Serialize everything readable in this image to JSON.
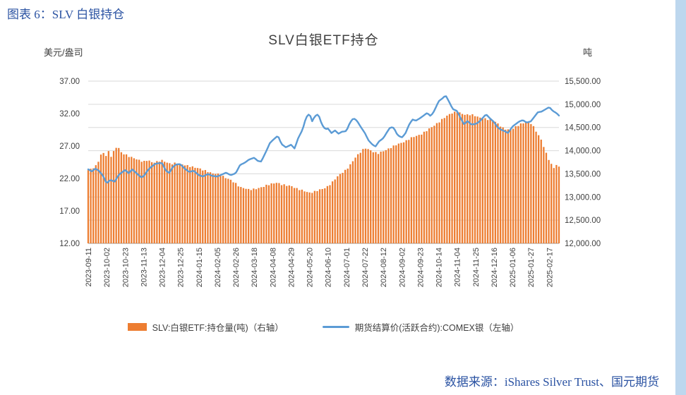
{
  "page": {
    "header": "图表 6：SLV 白银持仓",
    "source": "数据来源：iShares Silver Trust、国元期货"
  },
  "chart": {
    "title": "SLV白银ETF持仓",
    "left_axis": {
      "unit": "美元/盎司",
      "ticks": [
        "12.00",
        "17.00",
        "22.00",
        "27.00",
        "32.00",
        "37.00"
      ]
    },
    "right_axis": {
      "unit": "吨",
      "ticks": [
        "12,000.00",
        "12,500.00",
        "13,000.00",
        "13,500.00",
        "14,000.00",
        "14,500.00",
        "15,000.00",
        "15,500.00"
      ]
    },
    "x_labels": [
      "2023-09-11",
      "2023-10-02",
      "2023-10-23",
      "2023-11-13",
      "2023-12-04",
      "2023-12-25",
      "2024-01-15",
      "2024-02-05",
      "2024-02-26",
      "2024-03-18",
      "2024-04-08",
      "2024-04-29",
      "2024-05-20",
      "2024-06-10",
      "2024-07-01",
      "2024-07-22",
      "2024-08-12",
      "2024-09-02",
      "2024-09-23",
      "2024-10-14",
      "2024-11-04",
      "2024-11-25",
      "2024-12-16",
      "2025-01-06",
      "2025-01-27",
      "2025-02-17"
    ],
    "legend": [
      {
        "label": "SLV:白银ETF:持仓量(吨)（右轴）",
        "type": "bar",
        "color": "#ED7D31"
      },
      {
        "label": "期货结算价(活跃合约):COMEX银（左轴）",
        "type": "line",
        "color": "#5B9BD5"
      }
    ]
  },
  "chart_data": {
    "type": "bar+line",
    "title": "SLV白银ETF持仓",
    "x_domain_days": 536,
    "x_label_step_days": 21,
    "bar_count": 186,
    "line_samples": 268,
    "bar_jitter": 15,
    "grid": true,
    "legend_position": "bottom",
    "axes": {
      "left": {
        "label": "美元/盎司",
        "min": 12,
        "max": 37
      },
      "right": {
        "label": "吨",
        "min": 12000,
        "max": 15500
      }
    },
    "series": [
      {
        "name": "SLV:白银ETF:持仓量(吨)（右轴）",
        "type": "bar",
        "axis": "right",
        "color": "#ED7D31",
        "keypoints": [
          [
            0,
            13580
          ],
          [
            5,
            13620
          ],
          [
            10,
            13690
          ],
          [
            14,
            13900
          ],
          [
            18,
            13960
          ],
          [
            21,
            13870
          ],
          [
            24,
            14020
          ],
          [
            27,
            13820
          ],
          [
            30,
            14060
          ],
          [
            34,
            14080
          ],
          [
            38,
            13950
          ],
          [
            42,
            13920
          ],
          [
            47,
            13870
          ],
          [
            52,
            13840
          ],
          [
            57,
            13800
          ],
          [
            63,
            13760
          ],
          [
            68,
            13800
          ],
          [
            73,
            13740
          ],
          [
            78,
            13760
          ],
          [
            84,
            13790
          ],
          [
            89,
            13750
          ],
          [
            94,
            13710
          ],
          [
            99,
            13730
          ],
          [
            105,
            13710
          ],
          [
            110,
            13690
          ],
          [
            116,
            13660
          ],
          [
            121,
            13640
          ],
          [
            126,
            13620
          ],
          [
            131,
            13580
          ],
          [
            136,
            13550
          ],
          [
            141,
            13510
          ],
          [
            147,
            13500
          ],
          [
            152,
            13460
          ],
          [
            157,
            13410
          ],
          [
            162,
            13370
          ],
          [
            168,
            13290
          ],
          [
            173,
            13210
          ],
          [
            178,
            13190
          ],
          [
            183,
            13160
          ],
          [
            189,
            13170
          ],
          [
            194,
            13190
          ],
          [
            199,
            13220
          ],
          [
            204,
            13260
          ],
          [
            210,
            13290
          ],
          [
            215,
            13310
          ],
          [
            220,
            13270
          ],
          [
            226,
            13250
          ],
          [
            231,
            13240
          ],
          [
            236,
            13190
          ],
          [
            241,
            13160
          ],
          [
            246,
            13130
          ],
          [
            252,
            13090
          ],
          [
            257,
            13110
          ],
          [
            262,
            13150
          ],
          [
            268,
            13180
          ],
          [
            273,
            13230
          ],
          [
            278,
            13320
          ],
          [
            283,
            13430
          ],
          [
            288,
            13510
          ],
          [
            294,
            13590
          ],
          [
            299,
            13710
          ],
          [
            304,
            13850
          ],
          [
            309,
            13950
          ],
          [
            315,
            14060
          ],
          [
            320,
            14020
          ],
          [
            325,
            13970
          ],
          [
            330,
            13940
          ],
          [
            336,
            13990
          ],
          [
            341,
            14030
          ],
          [
            346,
            14080
          ],
          [
            351,
            14130
          ],
          [
            357,
            14170
          ],
          [
            362,
            14210
          ],
          [
            367,
            14270
          ],
          [
            372,
            14310
          ],
          [
            378,
            14340
          ],
          [
            383,
            14400
          ],
          [
            388,
            14470
          ],
          [
            393,
            14530
          ],
          [
            399,
            14610
          ],
          [
            404,
            14690
          ],
          [
            409,
            14760
          ],
          [
            414,
            14810
          ],
          [
            420,
            14840
          ],
          [
            425,
            14800
          ],
          [
            430,
            14770
          ],
          [
            436,
            14780
          ],
          [
            441,
            14750
          ],
          [
            446,
            14710
          ],
          [
            451,
            14690
          ],
          [
            456,
            14670
          ],
          [
            462,
            14650
          ],
          [
            467,
            14570
          ],
          [
            472,
            14490
          ],
          [
            477,
            14450
          ],
          [
            483,
            14470
          ],
          [
            488,
            14530
          ],
          [
            493,
            14580
          ],
          [
            498,
            14610
          ],
          [
            504,
            14590
          ],
          [
            508,
            14490
          ],
          [
            512,
            14350
          ],
          [
            516,
            14230
          ],
          [
            520,
            14010
          ],
          [
            524,
            13830
          ],
          [
            527,
            13710
          ],
          [
            530,
            13630
          ],
          [
            533,
            13690
          ],
          [
            536,
            13650
          ]
        ]
      },
      {
        "name": "期货结算价(活跃合约):COMEX银（左轴）",
        "type": "line",
        "axis": "left",
        "color": "#5B9BD5",
        "keypoints": [
          [
            0,
            23.4
          ],
          [
            4,
            23.1
          ],
          [
            8,
            23.5
          ],
          [
            12,
            23.2
          ],
          [
            17,
            22.4
          ],
          [
            21,
            21.2
          ],
          [
            25,
            21.8
          ],
          [
            30,
            21.5
          ],
          [
            35,
            22.6
          ],
          [
            42,
            23.3
          ],
          [
            46,
            22.8
          ],
          [
            50,
            23.4
          ],
          [
            56,
            22.7
          ],
          [
            60,
            22.2
          ],
          [
            63,
            22.3
          ],
          [
            68,
            23.3
          ],
          [
            72,
            23.8
          ],
          [
            77,
            24.3
          ],
          [
            84,
            24.4
          ],
          [
            88,
            23.3
          ],
          [
            92,
            22.8
          ],
          [
            97,
            23.9
          ],
          [
            101,
            24.2
          ],
          [
            105,
            24.2
          ],
          [
            110,
            23.5
          ],
          [
            115,
            23.0
          ],
          [
            120,
            23.2
          ],
          [
            126,
            22.5
          ],
          [
            131,
            22.3
          ],
          [
            136,
            22.7
          ],
          [
            141,
            22.4
          ],
          [
            147,
            22.3
          ],
          [
            152,
            22.6
          ],
          [
            157,
            22.9
          ],
          [
            162,
            22.5
          ],
          [
            168,
            22.8
          ],
          [
            173,
            24.1
          ],
          [
            178,
            24.4
          ],
          [
            183,
            24.9
          ],
          [
            189,
            25.2
          ],
          [
            193,
            24.7
          ],
          [
            197,
            24.6
          ],
          [
            203,
            26.3
          ],
          [
            207,
            27.5
          ],
          [
            211,
            28.0
          ],
          [
            216,
            28.6
          ],
          [
            220,
            27.3
          ],
          [
            225,
            26.8
          ],
          [
            231,
            27.2
          ],
          [
            235,
            26.6
          ],
          [
            239,
            28.2
          ],
          [
            244,
            29.5
          ],
          [
            248,
            31.4
          ],
          [
            252,
            32.0
          ],
          [
            255,
            30.8
          ],
          [
            258,
            31.6
          ],
          [
            262,
            31.9
          ],
          [
            266,
            30.3
          ],
          [
            270,
            29.6
          ],
          [
            273,
            29.7
          ],
          [
            277,
            29.0
          ],
          [
            281,
            29.4
          ],
          [
            285,
            28.9
          ],
          [
            289,
            29.2
          ],
          [
            294,
            29.3
          ],
          [
            298,
            30.6
          ],
          [
            302,
            31.3
          ],
          [
            306,
            30.9
          ],
          [
            310,
            30.0
          ],
          [
            315,
            29.0
          ],
          [
            319,
            27.9
          ],
          [
            323,
            27.3
          ],
          [
            327,
            26.9
          ],
          [
            331,
            27.7
          ],
          [
            336,
            28.2
          ],
          [
            340,
            29.1
          ],
          [
            344,
            29.9
          ],
          [
            348,
            29.8
          ],
          [
            352,
            28.7
          ],
          [
            357,
            28.3
          ],
          [
            361,
            28.9
          ],
          [
            365,
            30.2
          ],
          [
            369,
            31.1
          ],
          [
            373,
            30.9
          ],
          [
            378,
            31.3
          ],
          [
            382,
            31.7
          ],
          [
            386,
            32.1
          ],
          [
            390,
            31.6
          ],
          [
            394,
            32.4
          ],
          [
            399,
            33.9
          ],
          [
            403,
            34.3
          ],
          [
            407,
            34.8
          ],
          [
            411,
            33.8
          ],
          [
            415,
            32.7
          ],
          [
            420,
            32.4
          ],
          [
            424,
            31.3
          ],
          [
            428,
            30.3
          ],
          [
            432,
            30.9
          ],
          [
            436,
            30.3
          ],
          [
            441,
            30.4
          ],
          [
            445,
            30.7
          ],
          [
            449,
            31.3
          ],
          [
            453,
            31.9
          ],
          [
            457,
            31.3
          ],
          [
            462,
            30.7
          ],
          [
            466,
            29.9
          ],
          [
            470,
            29.5
          ],
          [
            474,
            29.3
          ],
          [
            478,
            29.0
          ],
          [
            483,
            30.0
          ],
          [
            487,
            30.4
          ],
          [
            491,
            30.8
          ],
          [
            495,
            31.0
          ],
          [
            499,
            30.6
          ],
          [
            504,
            30.8
          ],
          [
            508,
            31.5
          ],
          [
            512,
            32.2
          ],
          [
            516,
            32.3
          ],
          [
            520,
            32.6
          ],
          [
            525,
            33.0
          ],
          [
            529,
            32.4
          ],
          [
            533,
            32.1
          ],
          [
            536,
            31.7
          ]
        ]
      }
    ]
  }
}
